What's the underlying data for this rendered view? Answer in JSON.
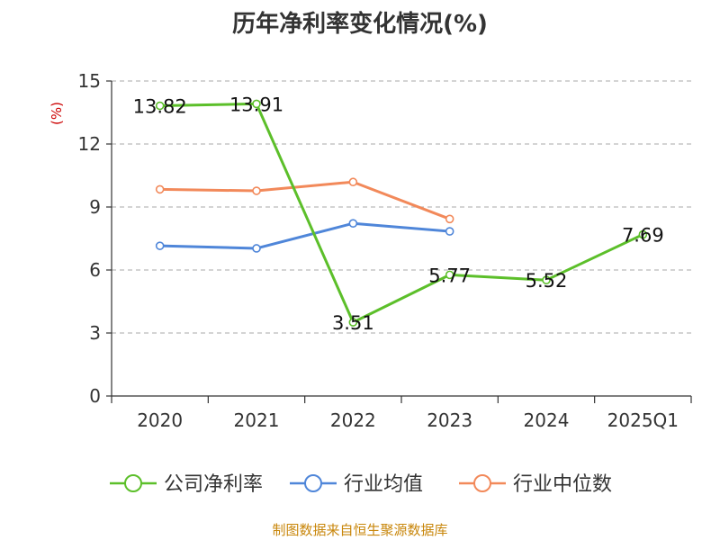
{
  "chart_data": {
    "type": "line",
    "title": "历年净利率变化情况(%)",
    "ylabel": "(%)",
    "xlabel": "",
    "categories": [
      "2020",
      "2021",
      "2022",
      "2023",
      "2024",
      "2025Q1"
    ],
    "ylim": [
      0,
      15
    ],
    "yticks": [
      0,
      3,
      6,
      9,
      12,
      15
    ],
    "grid": "horizontal dashed",
    "legend_position": "bottom",
    "series": [
      {
        "name": "公司净利率",
        "color": "#5cbf2a",
        "values": [
          13.82,
          13.91,
          3.51,
          5.77,
          5.52,
          7.69
        ],
        "show_labels": true
      },
      {
        "name": "行业均值",
        "color": "#4f86d9",
        "values": [
          7.15,
          7.03,
          8.22,
          7.84,
          null,
          null
        ],
        "show_labels": false
      },
      {
        "name": "行业中位数",
        "color": "#f2895a",
        "values": [
          9.84,
          9.77,
          10.19,
          8.43,
          null,
          null
        ],
        "show_labels": false
      }
    ]
  },
  "source": "制图数据来自恒生聚源数据库"
}
